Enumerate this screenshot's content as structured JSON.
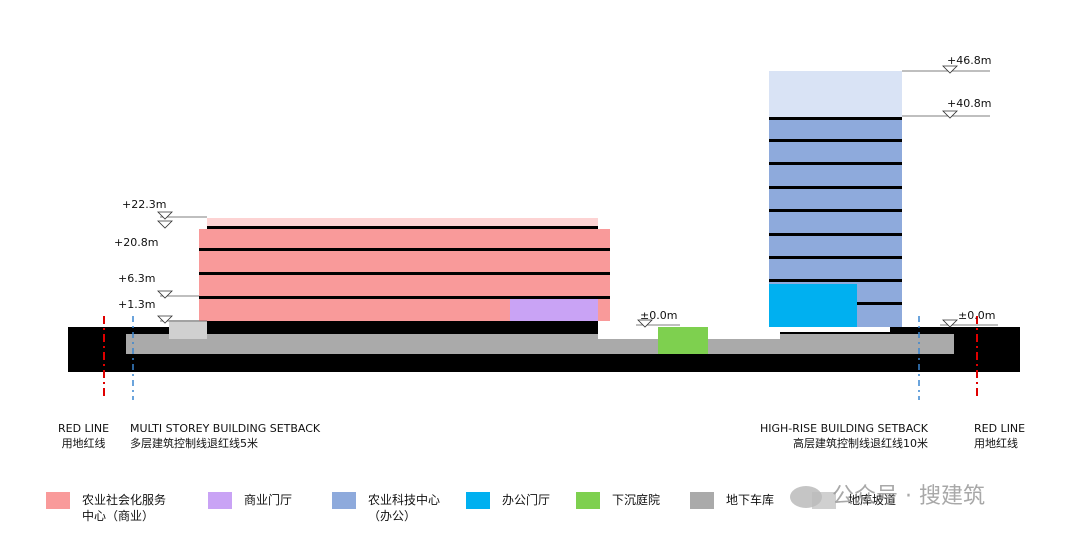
{
  "elevations": {
    "multi_top": "+22.3m",
    "multi_roof": "+20.8m",
    "multi_mid": "+6.3m",
    "multi_first": "+1.3m",
    "sunken": "±0.0m",
    "high_top": "+46.8m",
    "high_roof": "+40.8m",
    "high_ground": "±0.0m"
  },
  "lines": {
    "red_line_left_en": "RED LINE",
    "red_line_left_cn": "用地红线",
    "multi_setback_en": "MULTI STOREY BUILDING SETBACK",
    "multi_setback_cn": "多层建筑控制线退红线5米",
    "high_setback_en": "HIGH-RISE BUILDING SETBACK",
    "high_setback_cn": "高层建筑控制线退红线10米",
    "red_line_right_en": "RED LINE",
    "red_line_right_cn": "用地红线"
  },
  "legend": [
    {
      "line1": "农业社会化服务",
      "line2": "中心（商业）",
      "color": "#f99a9a"
    },
    {
      "line1": "商业门厅",
      "line2": "",
      "color": "#c9a3f5"
    },
    {
      "line1": "农业科技中心",
      "line2": "（办公）",
      "color": "#8eaadc"
    },
    {
      "line1": "办公门厅",
      "line2": "",
      "color": "#00b0f0"
    },
    {
      "line1": "下沉庭院",
      "line2": "",
      "color": "#7ed04f"
    },
    {
      "line1": "地下车库",
      "line2": "",
      "color": "#aaaaaa"
    },
    {
      "line1": "地库坡道",
      "line2": "",
      "color": "#d0d0d0"
    }
  ],
  "watermark": "公众号 · 搜建筑"
}
